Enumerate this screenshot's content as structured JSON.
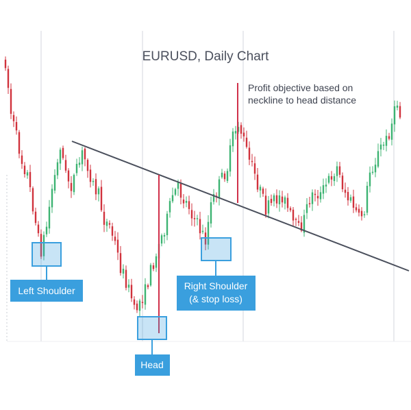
{
  "chart_data": {
    "type": "candlestick",
    "title": "EURUSD, Daily Chart",
    "xlabel": "",
    "ylabel": "",
    "grid": "vertical-only",
    "colors": {
      "up": "#3cb372",
      "down": "#d0323c",
      "neckline": "#4a4f5c",
      "target": "#d0304a",
      "annotation": "#3a9fde"
    },
    "price_path": [
      [
        0,
        90
      ],
      [
        2,
        165
      ],
      [
        4,
        200
      ],
      [
        6,
        235
      ],
      [
        8,
        255
      ],
      [
        10,
        300
      ],
      [
        12,
        350
      ],
      [
        13,
        365
      ],
      [
        15,
        330
      ],
      [
        17,
        275
      ],
      [
        19,
        240
      ],
      [
        20,
        210
      ],
      [
        22,
        255
      ],
      [
        24,
        270
      ],
      [
        26,
        250
      ],
      [
        28,
        225
      ],
      [
        30,
        240
      ],
      [
        32,
        270
      ],
      [
        34,
        285
      ],
      [
        36,
        320
      ],
      [
        38,
        330
      ],
      [
        40,
        355
      ],
      [
        42,
        390
      ],
      [
        44,
        410
      ],
      [
        46,
        435
      ],
      [
        47,
        455
      ],
      [
        49,
        440
      ],
      [
        51,
        425
      ],
      [
        53,
        395
      ],
      [
        55,
        370
      ],
      [
        57,
        345
      ],
      [
        59,
        320
      ],
      [
        61,
        285
      ],
      [
        63,
        275
      ],
      [
        65,
        290
      ],
      [
        67,
        300
      ],
      [
        69,
        320
      ],
      [
        71,
        335
      ],
      [
        73,
        350
      ],
      [
        75,
        300
      ],
      [
        77,
        280
      ],
      [
        79,
        260
      ],
      [
        81,
        245
      ],
      [
        83,
        200
      ],
      [
        85,
        180
      ],
      [
        87,
        205
      ],
      [
        89,
        235
      ],
      [
        91,
        255
      ],
      [
        93,
        280
      ],
      [
        95,
        305
      ],
      [
        97,
        300
      ],
      [
        99,
        290
      ],
      [
        101,
        285
      ],
      [
        103,
        305
      ],
      [
        105,
        325
      ],
      [
        107,
        335
      ],
      [
        109,
        320
      ],
      [
        111,
        290
      ],
      [
        113,
        280
      ],
      [
        115,
        285
      ],
      [
        117,
        270
      ],
      [
        119,
        255
      ],
      [
        121,
        245
      ],
      [
        123,
        270
      ],
      [
        125,
        290
      ],
      [
        127,
        300
      ],
      [
        129,
        320
      ],
      [
        131,
        305
      ],
      [
        133,
        250
      ],
      [
        135,
        235
      ],
      [
        137,
        215
      ],
      [
        139,
        205
      ],
      [
        141,
        180
      ],
      [
        143,
        150
      ],
      [
        144,
        170
      ]
    ],
    "annotations": {
      "neckline": "descending trend line",
      "profit_note": "Profit objective based on neckline to head distance",
      "labels": [
        "Left Shoulder",
        "Head",
        "Right Shoulder (& stop loss)"
      ]
    }
  },
  "labels": {
    "title": "EURUSD, Daily Chart",
    "profit_line1": "Profit objective based on",
    "profit_line2": "neckline to head distance",
    "left_shoulder": "Left Shoulder",
    "head": "Head",
    "right_shoulder_line1": "Right Shoulder",
    "right_shoulder_line2": "(& stop loss)"
  }
}
